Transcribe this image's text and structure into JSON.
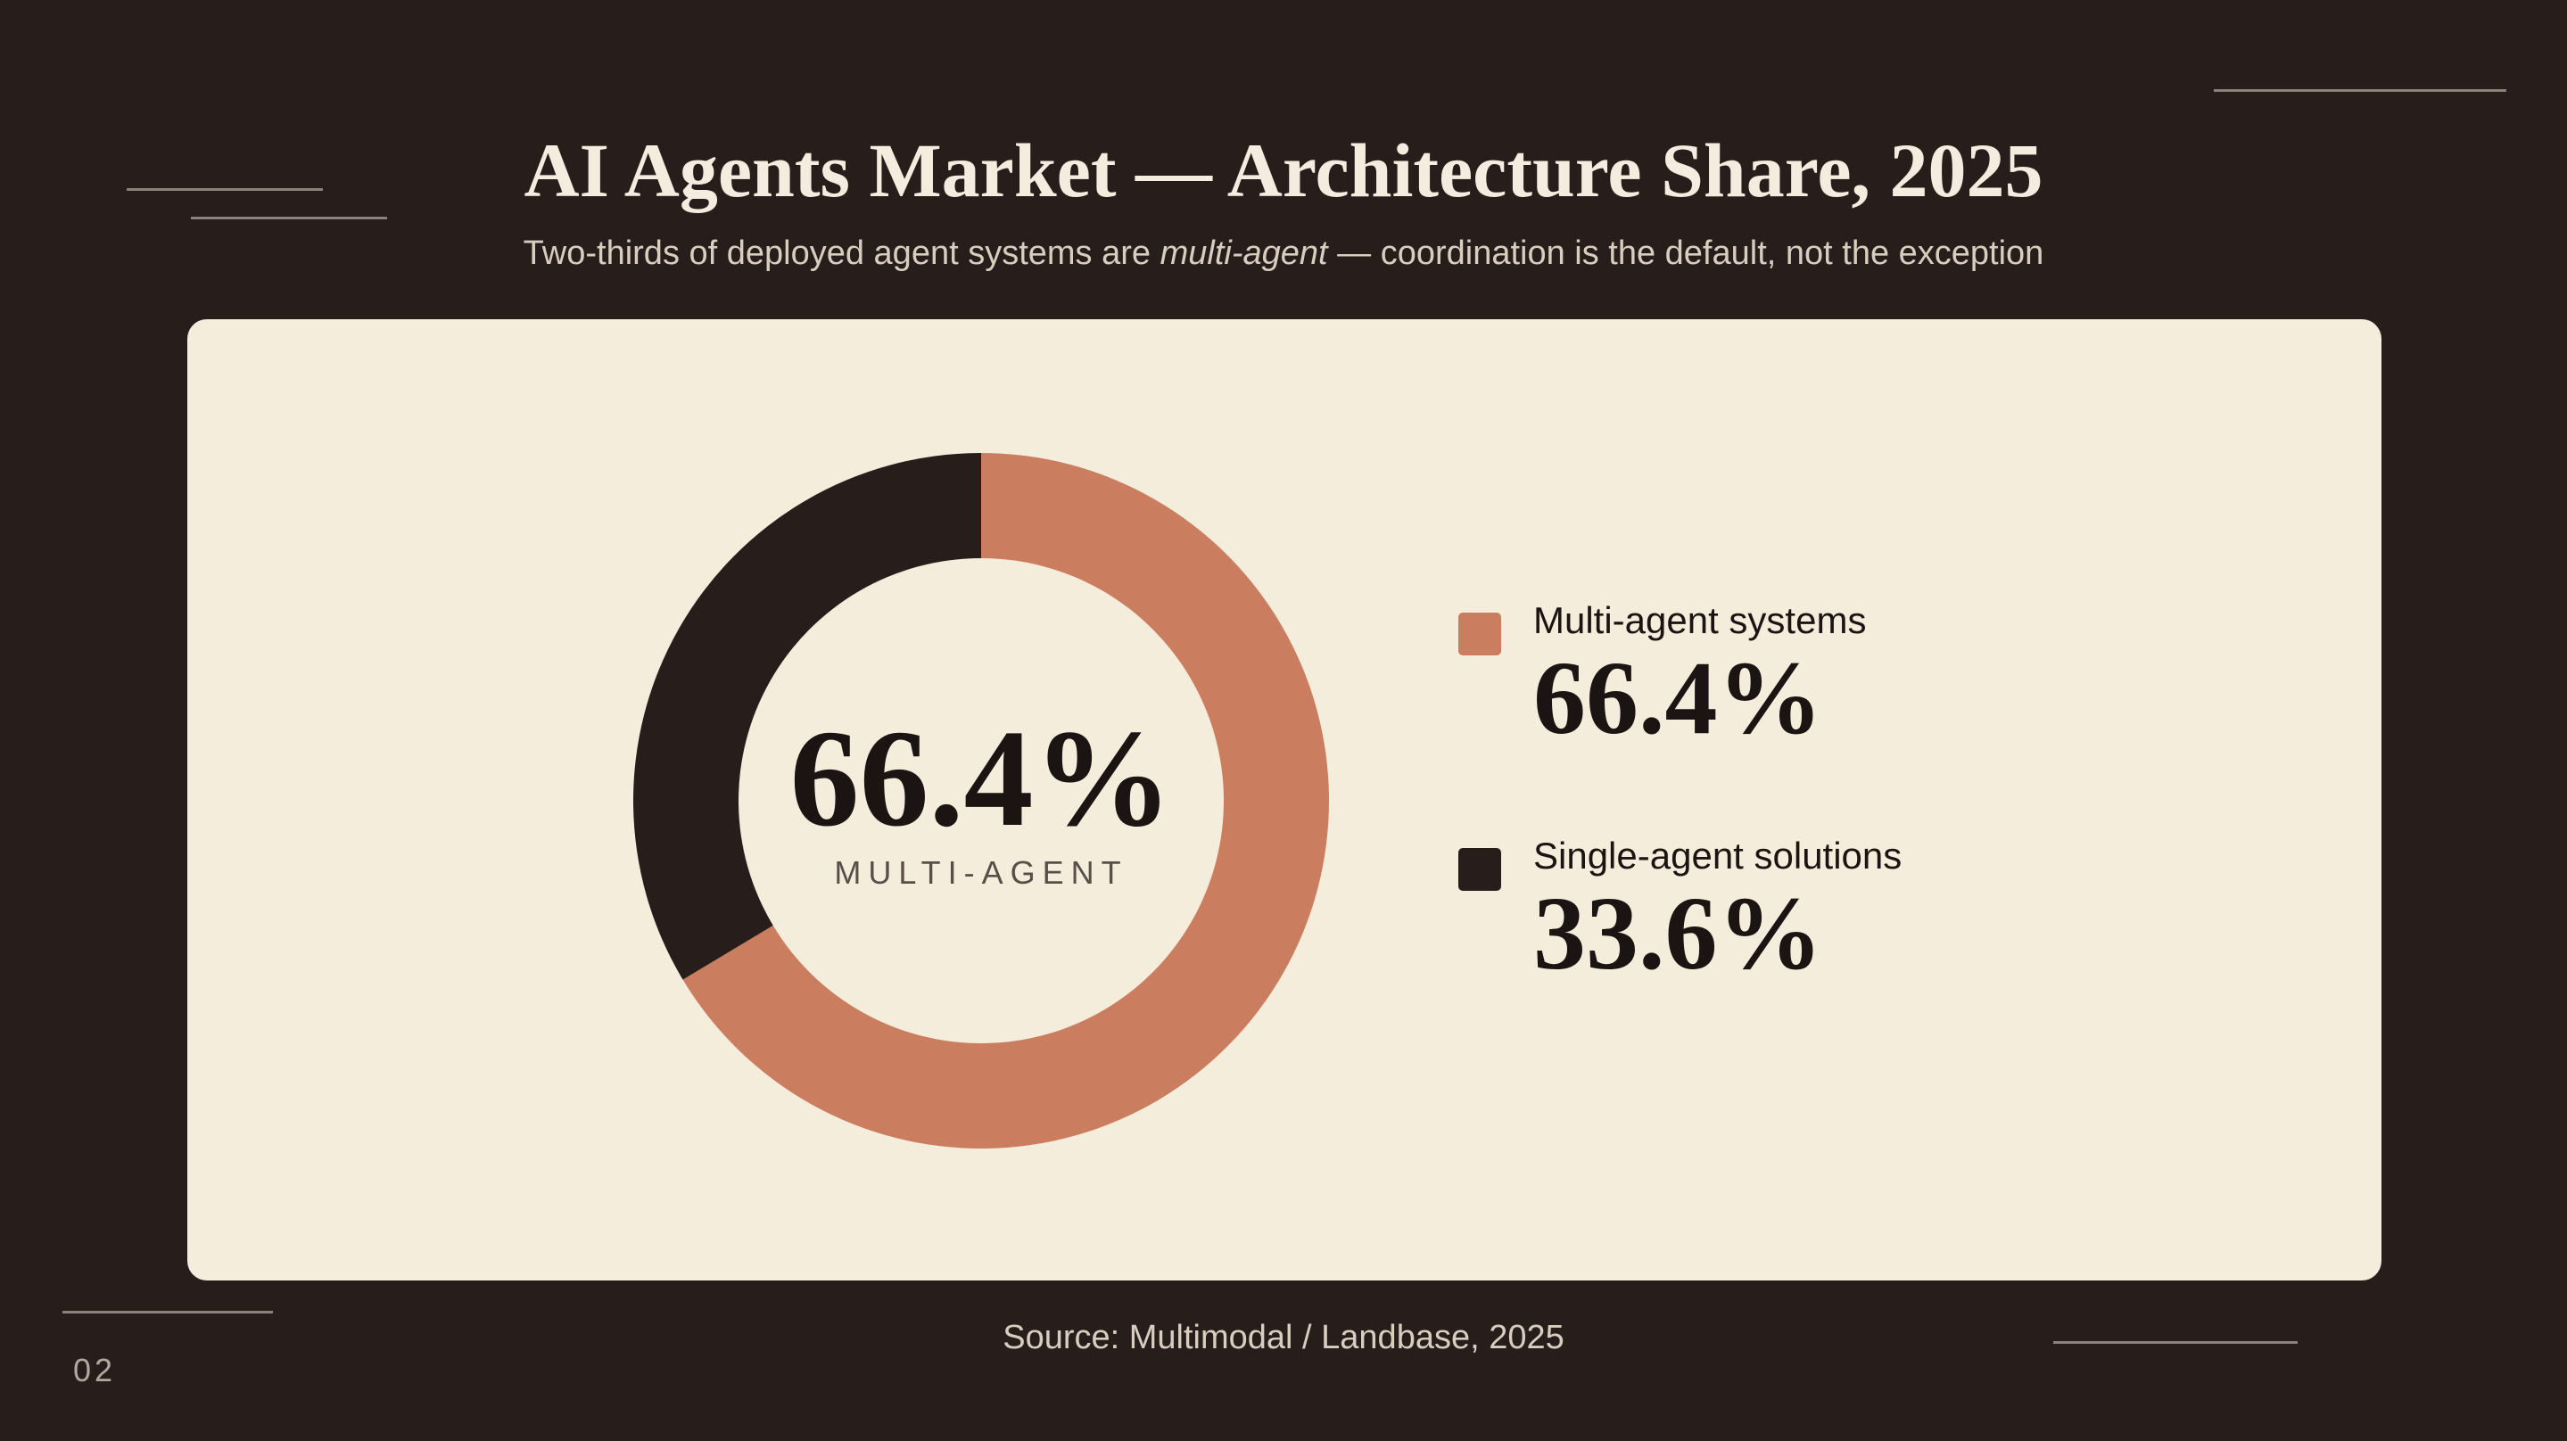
{
  "slide": {
    "title": "AI Agents Market — Architecture Share, 2025",
    "subtitle_before": "Two-thirds of deployed agent systems are ",
    "subtitle_emphasis": "multi-agent",
    "subtitle_after": " — coordination is the default, not the exception",
    "source": "Source: Multimodal / Landbase, 2025",
    "page_number": "02"
  },
  "chart_data": {
    "type": "pie",
    "title": "AI Agents Market — Architecture Share, 2025",
    "center_value": "66.4%",
    "center_label": "MULTI-AGENT",
    "legend_position": "right",
    "slices": [
      {
        "name": "Multi-agent systems",
        "value": 66.4,
        "value_label": "66.4%",
        "color": "#cb7d60"
      },
      {
        "name": "Single-agent solutions",
        "value": 33.6,
        "value_label": "33.6%",
        "color": "#271e1c"
      }
    ]
  }
}
